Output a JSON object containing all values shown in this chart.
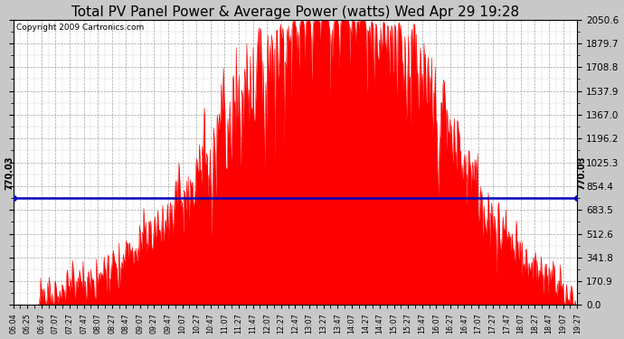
{
  "title": "Total PV Panel Power & Average Power (watts) Wed Apr 29 19:28",
  "copyright": "Copyright 2009 Cartronics.com",
  "avg_power": 770.03,
  "ymax": 2050.6,
  "ymin": 0.0,
  "yticks": [
    0.0,
    170.9,
    341.8,
    512.6,
    683.5,
    854.4,
    1025.3,
    1196.2,
    1367.0,
    1537.9,
    1708.8,
    1879.7,
    2050.6
  ],
  "xtick_labels": [
    "06:04",
    "06:25",
    "06:47",
    "07:07",
    "07:27",
    "07:47",
    "08:07",
    "08:27",
    "08:47",
    "09:07",
    "09:27",
    "09:47",
    "10:07",
    "10:27",
    "10:47",
    "11:07",
    "11:27",
    "11:47",
    "12:07",
    "12:27",
    "12:47",
    "13:07",
    "13:27",
    "13:47",
    "14:07",
    "14:27",
    "14:47",
    "15:07",
    "15:27",
    "15:47",
    "16:07",
    "16:27",
    "16:47",
    "17:07",
    "17:27",
    "17:47",
    "18:07",
    "18:27",
    "18:47",
    "19:07",
    "19:27"
  ],
  "fill_color": "#FF0000",
  "line_color": "#0000BB",
  "bg_color": "#C8C8C8",
  "plot_bg_color": "#FFFFFF",
  "grid_color": "#999999",
  "title_fontsize": 11,
  "copyright_fontsize": 6.5
}
